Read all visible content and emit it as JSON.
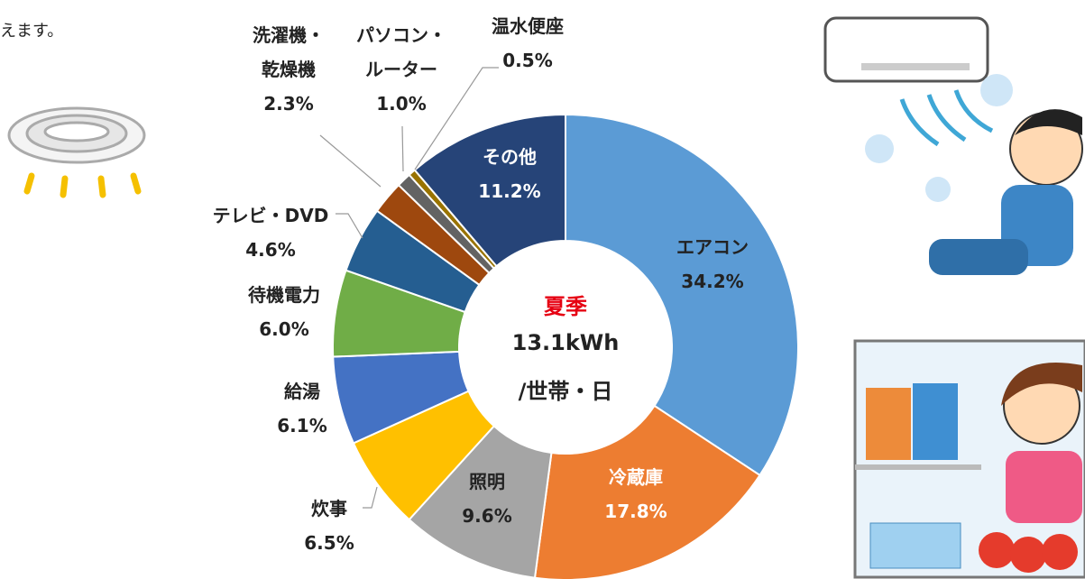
{
  "chart_data": {
    "type": "donut",
    "fragment_text": "えます。",
    "center_title": "夏季",
    "center_value": "13.1kWh",
    "center_unit": "/世帯・日",
    "categories": [
      "エアコン",
      "冷蔵庫",
      "照明",
      "炊事",
      "給湯",
      "待機電力",
      "テレビ・DVD",
      "洗濯機・\n乾燥機",
      "パソコン・\nルーター",
      "温水便座",
      "その他"
    ],
    "values": [
      34.2,
      17.8,
      9.6,
      6.5,
      6.1,
      6.0,
      4.6,
      2.3,
      1.0,
      0.5,
      11.2
    ],
    "value_labels": [
      "34.2%",
      "17.8%",
      "9.6%",
      "6.5%",
      "6.1%",
      "6.0%",
      "4.6%",
      "2.3%",
      "1.0%",
      "0.5%",
      "11.2%"
    ],
    "colors": [
      "#5b9bd5",
      "#ed7d31",
      "#a5a5a5",
      "#ffc000",
      "#4472c4",
      "#70ad47",
      "#255e91",
      "#9e480e",
      "#636363",
      "#997300",
      "#264478"
    ]
  }
}
